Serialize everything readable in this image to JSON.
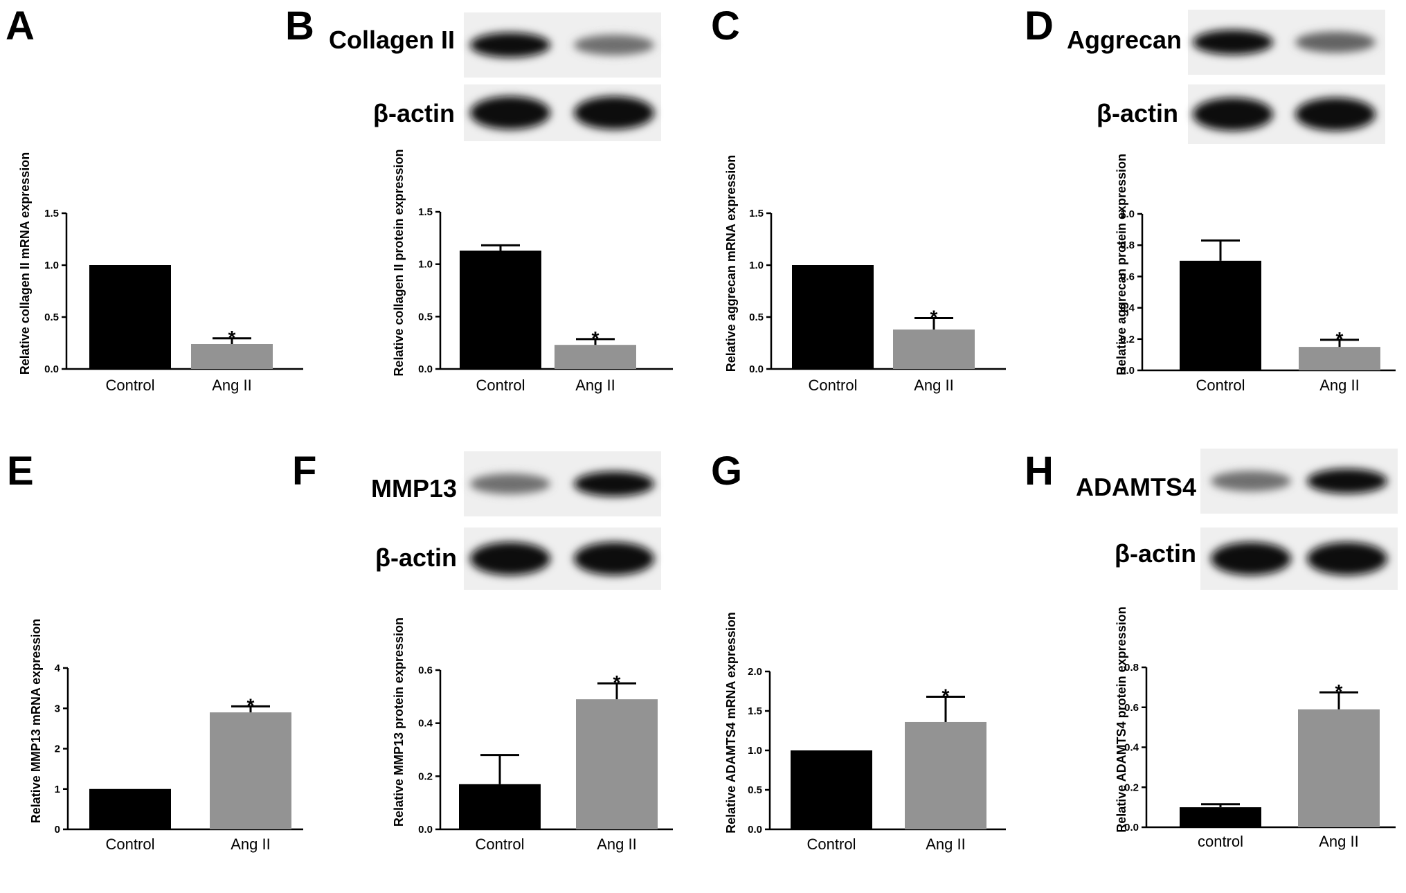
{
  "colors": {
    "control_bar": "#000000",
    "treatment_bar": "#939393",
    "axis": "#000000"
  },
  "chart_data": [
    {
      "panel": "A",
      "type": "bar",
      "categories": [
        "Control",
        "Ang II"
      ],
      "values": [
        1.0,
        0.24
      ],
      "errors": [
        0,
        0.055
      ],
      "significance": [
        "",
        "*"
      ],
      "ylabel": "Relative collagen II mRNA expression",
      "ylim": [
        0,
        1.5
      ],
      "yticks": [
        "0.0",
        "0.5",
        "1.0",
        "1.5"
      ],
      "grid": false
    },
    {
      "panel": "B",
      "type": "bar",
      "categories": [
        "Control",
        "Ang II"
      ],
      "values": [
        1.13,
        0.23
      ],
      "errors": [
        0.05,
        0.055
      ],
      "significance": [
        "",
        "*"
      ],
      "ylabel": "Relative collagen II protein expression",
      "ylim": [
        0,
        1.5
      ],
      "yticks": [
        "0.0",
        "0.5",
        "1.0",
        "1.5"
      ],
      "grid": false
    },
    {
      "panel": "C",
      "type": "bar",
      "categories": [
        "Control",
        "Ang II"
      ],
      "values": [
        1.0,
        0.38
      ],
      "errors": [
        0,
        0.11
      ],
      "significance": [
        "",
        "*"
      ],
      "ylabel": "Relative aggrecan mRNA expression",
      "ylim": [
        0,
        1.5
      ],
      "yticks": [
        "0.0",
        "0.5",
        "1.0",
        "1.5"
      ],
      "grid": false
    },
    {
      "panel": "D",
      "type": "bar",
      "categories": [
        "Control",
        "Ang II"
      ],
      "values": [
        0.7,
        0.15
      ],
      "errors": [
        0.13,
        0.045
      ],
      "significance": [
        "",
        "*"
      ],
      "ylabel": "Relative aggrecan protein expression",
      "ylim": [
        0,
        1.0
      ],
      "yticks": [
        "0.0",
        "0.2",
        "0.4",
        "0.6",
        "0.8",
        "1.0"
      ],
      "grid": false
    },
    {
      "panel": "E",
      "type": "bar",
      "categories": [
        "Control",
        "Ang II"
      ],
      "values": [
        1.0,
        2.9
      ],
      "errors": [
        0,
        0.15
      ],
      "significance": [
        "",
        "*"
      ],
      "ylabel": "Relative MMP13 mRNA expression",
      "ylim": [
        0,
        4
      ],
      "yticks": [
        "0",
        "1",
        "2",
        "3",
        "4"
      ],
      "grid": false
    },
    {
      "panel": "F",
      "type": "bar",
      "categories": [
        "Control",
        "Ang II"
      ],
      "values": [
        0.17,
        0.49
      ],
      "errors": [
        0.11,
        0.06
      ],
      "significance": [
        "",
        "*"
      ],
      "ylabel": "Relative MMP13 protein expression",
      "ylim": [
        0,
        0.6
      ],
      "yticks": [
        "0.0",
        "0.2",
        "0.4",
        "0.6"
      ],
      "grid": false
    },
    {
      "panel": "G",
      "type": "bar",
      "categories": [
        "Control",
        "Ang II"
      ],
      "values": [
        1.0,
        1.36
      ],
      "errors": [
        0,
        0.32
      ],
      "significance": [
        "",
        "*"
      ],
      "ylabel": "Relative ADAMTS4 mRNA expression",
      "ylim": [
        0,
        2.0
      ],
      "yticks": [
        "0.0",
        "0.5",
        "1.0",
        "1.5",
        "2.0"
      ],
      "grid": false
    },
    {
      "panel": "H",
      "type": "bar",
      "categories": [
        "control",
        "Ang II"
      ],
      "values": [
        0.1,
        0.59
      ],
      "errors": [
        0.015,
        0.085
      ],
      "significance": [
        "",
        "*"
      ],
      "ylabel": "Relative ADAMTS4 protein expression",
      "ylim": [
        0,
        0.8
      ],
      "yticks": [
        "0.0",
        "0.2",
        "0.4",
        "0.6",
        "0.8"
      ],
      "grid": false
    }
  ],
  "blots": [
    {
      "panel": "B",
      "target_label": "Collagen II",
      "loading_label": "β-actin",
      "target_intensity": [
        1.0,
        0.55
      ],
      "loading_intensity": [
        1.0,
        1.0
      ]
    },
    {
      "panel": "D",
      "target_label": "Aggrecan",
      "loading_label": "β-actin",
      "target_intensity": [
        1.0,
        0.6
      ],
      "loading_intensity": [
        1.0,
        1.0
      ]
    },
    {
      "panel": "F",
      "target_label": "MMP13",
      "loading_label": "β-actin",
      "target_intensity": [
        0.55,
        1.0
      ],
      "loading_intensity": [
        1.0,
        1.0
      ]
    },
    {
      "panel": "H",
      "target_label": "ADAMTS4",
      "loading_label": "β-actin",
      "target_intensity": [
        0.55,
        1.0
      ],
      "loading_intensity": [
        1.0,
        1.0
      ]
    }
  ]
}
